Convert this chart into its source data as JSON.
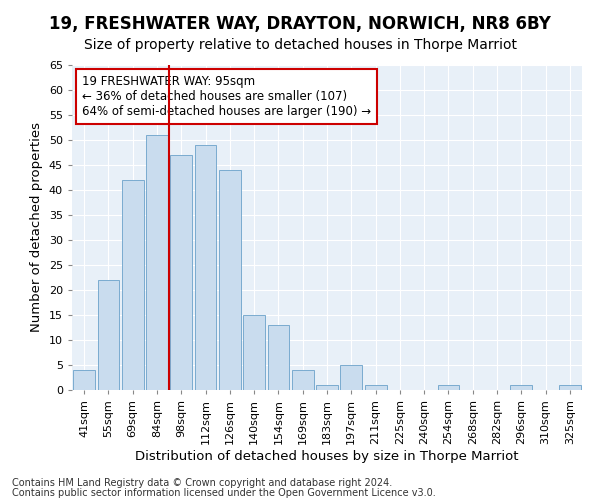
{
  "title": "19, FRESHWATER WAY, DRAYTON, NORWICH, NR8 6BY",
  "subtitle": "Size of property relative to detached houses in Thorpe Marriot",
  "xlabel": "Distribution of detached houses by size in Thorpe Marriot",
  "ylabel": "Number of detached properties",
  "categories": [
    "41sqm",
    "55sqm",
    "69sqm",
    "84sqm",
    "98sqm",
    "112sqm",
    "126sqm",
    "140sqm",
    "154sqm",
    "169sqm",
    "183sqm",
    "197sqm",
    "211sqm",
    "225sqm",
    "240sqm",
    "254sqm",
    "268sqm",
    "282sqm",
    "296sqm",
    "310sqm",
    "325sqm"
  ],
  "values": [
    4,
    22,
    42,
    51,
    47,
    49,
    44,
    15,
    13,
    4,
    1,
    5,
    1,
    0,
    0,
    1,
    0,
    0,
    1,
    0,
    1
  ],
  "bar_color": "#c9dcee",
  "bar_edgecolor": "#7aabcf",
  "vline_x_idx": 4,
  "vline_color": "#cc0000",
  "annotation_lines": [
    "19 FRESHWATER WAY: 95sqm",
    "← 36% of detached houses are smaller (107)",
    "64% of semi-detached houses are larger (190) →"
  ],
  "annotation_box_color": "#ffffff",
  "annotation_box_edgecolor": "#cc0000",
  "ylim": [
    0,
    65
  ],
  "yticks": [
    0,
    5,
    10,
    15,
    20,
    25,
    30,
    35,
    40,
    45,
    50,
    55,
    60,
    65
  ],
  "footer_line1": "Contains HM Land Registry data © Crown copyright and database right 2024.",
  "footer_line2": "Contains public sector information licensed under the Open Government Licence v3.0.",
  "fig_bg_color": "#ffffff",
  "bg_color": "#e8f0f8",
  "grid_color": "#ffffff",
  "title_fontsize": 12,
  "subtitle_fontsize": 10,
  "axis_label_fontsize": 9.5,
  "tick_fontsize": 8,
  "annotation_fontsize": 8.5,
  "footer_fontsize": 7
}
